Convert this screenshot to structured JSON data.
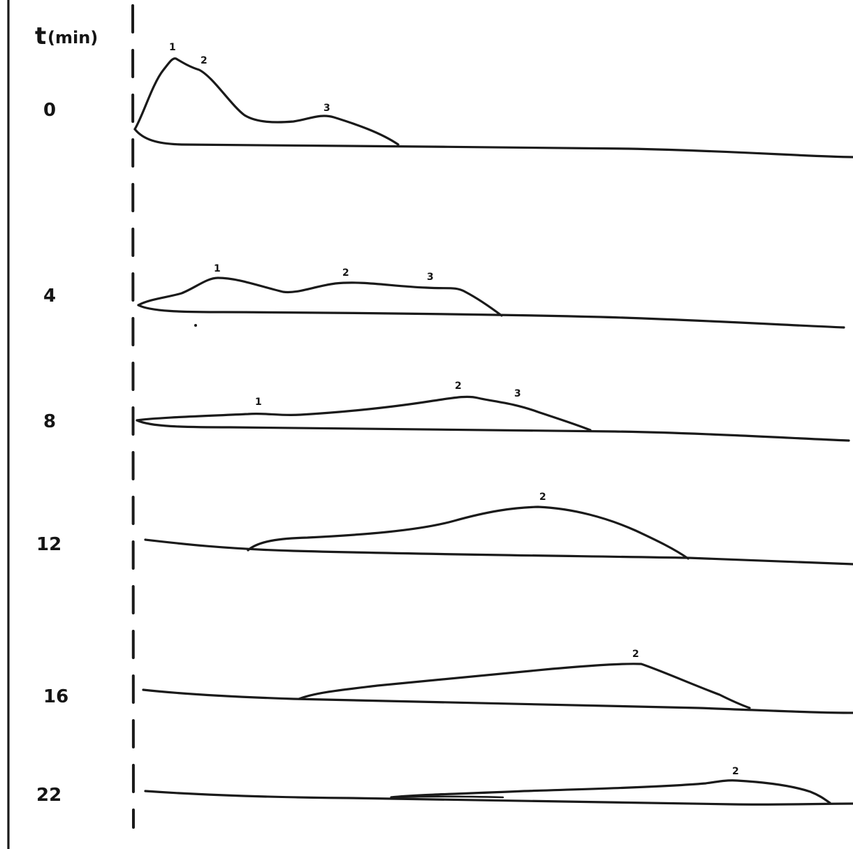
{
  "axis": {
    "title": "t",
    "unit": "(min)"
  },
  "traces": [
    {
      "time": "0",
      "peaks": [
        "1",
        "2",
        "3"
      ]
    },
    {
      "time": "4",
      "peaks": [
        "1",
        "2",
        "3"
      ]
    },
    {
      "time": "8",
      "peaks": [
        "1",
        "2",
        "3"
      ]
    },
    {
      "time": "12",
      "peaks": [
        "2"
      ]
    },
    {
      "time": "16",
      "peaks": [
        "2"
      ]
    },
    {
      "time": "22",
      "peaks": [
        "2"
      ]
    }
  ]
}
